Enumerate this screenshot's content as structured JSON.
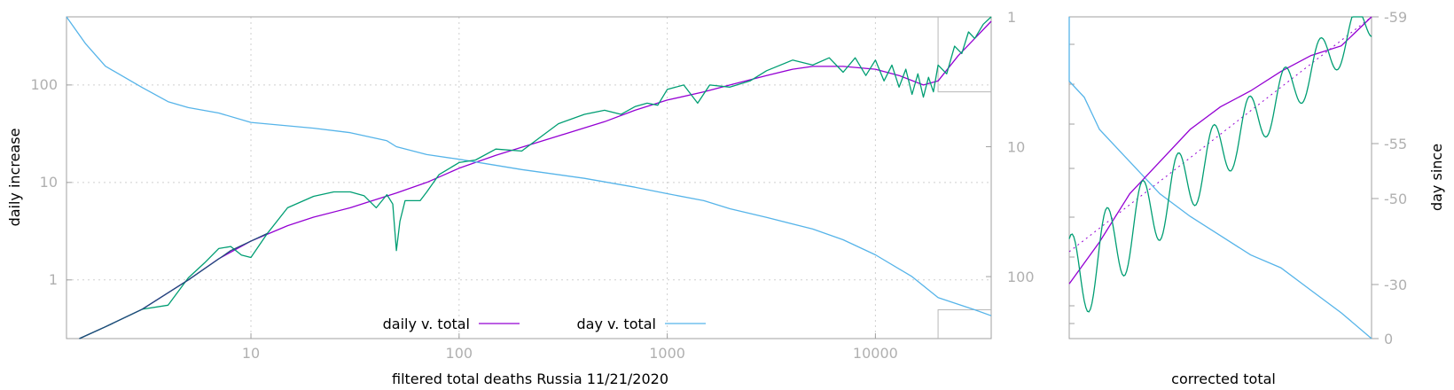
{
  "colors": {
    "daily": "#9400d3",
    "day": "#56b4e9",
    "raw": "#009e73",
    "corrected": "#1f4e79",
    "grid": "#cfcfcf",
    "frame": "#a0a0a0",
    "tick_text": "#b0b0b0"
  },
  "chart_data": [
    {
      "type": "line",
      "scale": "log-log",
      "xlabel": "filtered total deaths Russia 11/21/2020",
      "ylabel": "daily increase",
      "y2label": "",
      "xlim": [
        1.3,
        36000
      ],
      "ylim": [
        0.25,
        500
      ],
      "y2lim": [
        1,
        300
      ],
      "x_ticks": [
        "10",
        "100",
        "1000",
        "10000"
      ],
      "y_ticks": [
        "1",
        "10",
        "100"
      ],
      "y2_ticks": [
        "1",
        "10",
        "100"
      ],
      "legend_position": "bottom-center",
      "legend": [
        "daily v. total",
        "day v. total"
      ],
      "series": [
        {
          "name": "daily v. total",
          "axis": "y",
          "points": [
            [
              1.5,
              0.25
            ],
            [
              2,
              0.33
            ],
            [
              3,
              0.5
            ],
            [
              5,
              1.0
            ],
            [
              7,
              1.65
            ],
            [
              10,
              2.5
            ],
            [
              15,
              3.6
            ],
            [
              20,
              4.4
            ],
            [
              30,
              5.5
            ],
            [
              50,
              7.8
            ],
            [
              70,
              10
            ],
            [
              100,
              14
            ],
            [
              150,
              19
            ],
            [
              200,
              23
            ],
            [
              300,
              30
            ],
            [
              500,
              42
            ],
            [
              700,
              55
            ],
            [
              1000,
              70
            ],
            [
              1500,
              85
            ],
            [
              2000,
              100
            ],
            [
              3000,
              125
            ],
            [
              4000,
              145
            ],
            [
              5000,
              155
            ],
            [
              7000,
              155
            ],
            [
              10000,
              145
            ],
            [
              13000,
              125
            ],
            [
              17000,
              100
            ],
            [
              20000,
              110
            ],
            [
              25000,
              200
            ],
            [
              30000,
              300
            ],
            [
              36000,
              450
            ]
          ]
        },
        {
          "name": "day v. total",
          "axis": "y2",
          "points": [
            [
              1.3,
              1
            ],
            [
              1.6,
              1.6
            ],
            [
              2,
              2.4
            ],
            [
              3,
              3.5
            ],
            [
              4,
              4.5
            ],
            [
              5,
              5
            ],
            [
              7,
              5.5
            ],
            [
              10,
              6.5
            ],
            [
              20,
              7.2
            ],
            [
              30,
              7.8
            ],
            [
              45,
              9
            ],
            [
              50,
              10
            ],
            [
              70,
              11.5
            ],
            [
              100,
              12.5
            ],
            [
              200,
              15
            ],
            [
              400,
              17.5
            ],
            [
              700,
              20.5
            ],
            [
              1000,
              23
            ],
            [
              1500,
              26
            ],
            [
              2000,
              30
            ],
            [
              3000,
              35
            ],
            [
              5000,
              43
            ],
            [
              7000,
              52
            ],
            [
              10000,
              68
            ],
            [
              15000,
              100
            ],
            [
              20000,
              145
            ],
            [
              30000,
              180
            ],
            [
              36000,
              200
            ]
          ]
        },
        {
          "name": "",
          "axis": "y",
          "points": [
            [
              1.5,
              0.25
            ],
            [
              2,
              0.33
            ],
            [
              3,
              0.5
            ],
            [
              4,
              0.55
            ],
            [
              5,
              1.05
            ],
            [
              6,
              1.5
            ],
            [
              7,
              2.1
            ],
            [
              8,
              2.2
            ],
            [
              9,
              1.8
            ],
            [
              10,
              1.7
            ],
            [
              12,
              3
            ],
            [
              15,
              5.5
            ],
            [
              20,
              7.2
            ],
            [
              25,
              8
            ],
            [
              30,
              8
            ],
            [
              35,
              7.3
            ],
            [
              40,
              5.5
            ],
            [
              45,
              7.5
            ],
            [
              48,
              6
            ],
            [
              50,
              2
            ],
            [
              52,
              4
            ],
            [
              55,
              6.5
            ],
            [
              65,
              6.5
            ],
            [
              70,
              8
            ],
            [
              80,
              12
            ],
            [
              100,
              16
            ],
            [
              120,
              17
            ],
            [
              150,
              22
            ],
            [
              200,
              21
            ],
            [
              300,
              40
            ],
            [
              400,
              50
            ],
            [
              500,
              55
            ],
            [
              600,
              50
            ],
            [
              700,
              60
            ],
            [
              800,
              65
            ],
            [
              900,
              62
            ],
            [
              1000,
              90
            ],
            [
              1200,
              100
            ],
            [
              1400,
              65
            ],
            [
              1600,
              100
            ],
            [
              2000,
              95
            ],
            [
              2500,
              110
            ],
            [
              3000,
              140
            ],
            [
              4000,
              180
            ],
            [
              5000,
              160
            ],
            [
              6000,
              190
            ],
            [
              7000,
              135
            ],
            [
              8000,
              190
            ],
            [
              9000,
              125
            ],
            [
              10000,
              180
            ],
            [
              11000,
              110
            ],
            [
              12000,
              160
            ],
            [
              13000,
              95
            ],
            [
              14000,
              145
            ],
            [
              15000,
              80
            ],
            [
              16000,
              130
            ],
            [
              17000,
              75
            ],
            [
              18000,
              120
            ],
            [
              19000,
              85
            ],
            [
              20000,
              160
            ],
            [
              22000,
              130
            ],
            [
              24000,
              250
            ],
            [
              26000,
              210
            ],
            [
              28000,
              350
            ],
            [
              30000,
              300
            ],
            [
              33000,
              420
            ],
            [
              36000,
              500
            ]
          ]
        },
        {
          "name": "",
          "axis": "y",
          "points": [
            [
              1.5,
              0.25
            ],
            [
              2,
              0.33
            ],
            [
              3,
              0.5
            ],
            [
              5,
              1.0
            ],
            [
              8,
              2.0
            ],
            [
              12,
              3.0
            ]
          ]
        }
      ]
    },
    {
      "type": "line",
      "xlabel": "corrected total",
      "ylabel": "",
      "y2label": "day since",
      "y2_ticks": [
        "-59",
        "-55",
        "-50",
        "-30",
        "0"
      ],
      "series": [
        {
          "name": "",
          "points": [
            [
              0,
              0.8
            ],
            [
              0.05,
              0.75
            ],
            [
              0.1,
              0.65
            ],
            [
              0.2,
              0.55
            ],
            [
              0.3,
              0.45
            ],
            [
              0.4,
              0.38
            ],
            [
              0.5,
              0.32
            ],
            [
              0.6,
              0.26
            ],
            [
              0.7,
              0.22
            ],
            [
              0.8,
              0.15
            ],
            [
              0.9,
              0.08
            ],
            [
              1,
              0.0
            ]
          ]
        },
        {
          "name": "",
          "points": [
            [
              0,
              0.17
            ],
            [
              0.1,
              0.3
            ],
            [
              0.2,
              0.45
            ],
            [
              0.3,
              0.55
            ],
            [
              0.4,
              0.65
            ],
            [
              0.5,
              0.72
            ],
            [
              0.6,
              0.77
            ],
            [
              0.7,
              0.83
            ],
            [
              0.8,
              0.88
            ],
            [
              0.9,
              0.91
            ],
            [
              1,
              1.0
            ]
          ]
        }
      ]
    }
  ]
}
